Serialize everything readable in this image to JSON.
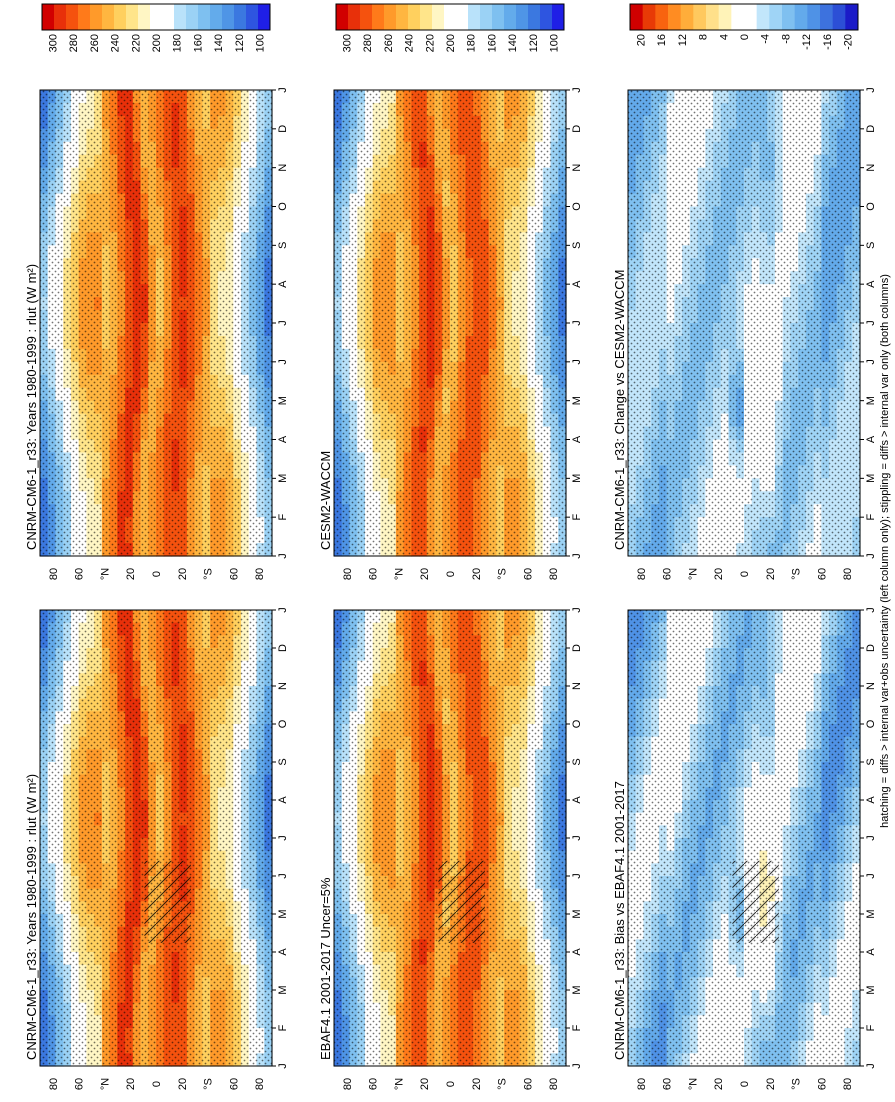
{
  "footer": "hatching = diffs > internal var+obs uncertainty (left column only); stippling = diffs > internal var only (both columns)",
  "colors": {
    "abs_scale": [
      "#1f1fe6",
      "#2e55e0",
      "#3b78e0",
      "#4f95e6",
      "#63abeb",
      "#7ec0f0",
      "#9bd2f5",
      "#b9e2fa",
      "#ffffff",
      "#ffffff",
      "#fff6c4",
      "#ffe58a",
      "#ffd05e",
      "#ffb640",
      "#ff9a2a",
      "#ff7a1a",
      "#f5520e",
      "#e8300a",
      "#d10000"
    ],
    "diff_scale": [
      "#1b1bc8",
      "#2c4fd6",
      "#3d72de",
      "#4f92e6",
      "#63aaeb",
      "#7fc0f0",
      "#9fd4f6",
      "#c2e6fb",
      "#ffffff",
      "#ffffff",
      "#fff3b8",
      "#ffe08a",
      "#ffc95e",
      "#ffad3a",
      "#ff8c22",
      "#f8630f",
      "#e83a06",
      "#d00000"
    ]
  },
  "chart_data": [
    {
      "type": "heatmap",
      "title": "CNRM-CM6-1_r33: Years 1980-1999 : rlut (W m²)",
      "months": [
        "J",
        "F",
        "M",
        "A",
        "M",
        "J",
        "J",
        "A",
        "S",
        "O",
        "N",
        "D",
        "J"
      ],
      "lat_labels": [
        "80",
        "60",
        "°N",
        "20",
        "0",
        "20",
        "°S",
        "60",
        "80"
      ],
      "y_range": [
        -90,
        90
      ],
      "legend_ticks": [
        "300",
        "280",
        "260",
        "240",
        "220",
        "200",
        "180",
        "160",
        "140",
        "120",
        "100"
      ],
      "legend_range": [
        90,
        310
      ],
      "scale": "abs",
      "tropics_peak": 282,
      "hatching": true
    },
    {
      "type": "heatmap",
      "title": "CNRM-CM6-1_r33: Years 1980-1999 : rlut (W m²)",
      "months": [
        "J",
        "F",
        "M",
        "A",
        "M",
        "J",
        "J",
        "A",
        "S",
        "O",
        "N",
        "D",
        "J"
      ],
      "lat_labels": [
        "80",
        "60",
        "°N",
        "20",
        "0",
        "20",
        "°S",
        "60",
        "80"
      ],
      "y_range": [
        -90,
        90
      ],
      "legend_ticks": [
        "300",
        "280",
        "260",
        "240",
        "220",
        "200",
        "180",
        "160",
        "140",
        "120",
        "100"
      ],
      "legend_range": [
        90,
        310
      ],
      "scale": "abs",
      "tropics_peak": 282,
      "hatching": false
    },
    {
      "type": "heatmap",
      "title": "EBAF4.1 2001-2017 Uncer=5%",
      "months": [
        "J",
        "F",
        "M",
        "A",
        "M",
        "J",
        "J",
        "A",
        "S",
        "O",
        "N",
        "D",
        "J"
      ],
      "lat_labels": [
        "80",
        "60",
        "°N",
        "20",
        "0",
        "20",
        "°S",
        "60",
        "80"
      ],
      "y_range": [
        -90,
        90
      ],
      "legend_ticks": [
        "300",
        "280",
        "260",
        "240",
        "220",
        "200",
        "180",
        "160",
        "140",
        "120",
        "100"
      ],
      "legend_range": [
        90,
        310
      ],
      "scale": "abs",
      "tropics_peak": 278,
      "hatching": true
    },
    {
      "type": "heatmap",
      "title": "CESM2-WACCM",
      "months": [
        "J",
        "F",
        "M",
        "A",
        "M",
        "J",
        "J",
        "A",
        "S",
        "O",
        "N",
        "D",
        "J"
      ],
      "lat_labels": [
        "80",
        "60",
        "°N",
        "20",
        "0",
        "20",
        "°S",
        "60",
        "80"
      ],
      "y_range": [
        -90,
        90
      ],
      "legend_ticks": [
        "300",
        "280",
        "260",
        "240",
        "220",
        "200",
        "180",
        "160",
        "140",
        "120",
        "100"
      ],
      "legend_range": [
        90,
        310
      ],
      "scale": "abs",
      "tropics_peak": 278,
      "hatching": false
    },
    {
      "type": "heatmap",
      "title": "CNRM-CM6-1_r33: Bias vs EBAF4.1 2001-2017",
      "months": [
        "J",
        "F",
        "M",
        "A",
        "M",
        "J",
        "J",
        "A",
        "S",
        "O",
        "N",
        "D",
        "J"
      ],
      "lat_labels": [
        "80",
        "60",
        "°N",
        "20",
        "0",
        "20",
        "°S",
        "60",
        "80"
      ],
      "y_range": [
        -90,
        90
      ],
      "legend_ticks": [
        "20",
        "16",
        "12",
        "8",
        "4",
        "0",
        "-4",
        "-8",
        "-12",
        "-16",
        "-20"
      ],
      "legend_range": [
        -22,
        22
      ],
      "scale": "diff",
      "hatching": true
    },
    {
      "type": "heatmap",
      "title": "CNRM-CM6-1_r33: Change vs CESM2-WACCM",
      "months": [
        "J",
        "F",
        "M",
        "A",
        "M",
        "J",
        "J",
        "A",
        "S",
        "O",
        "N",
        "D",
        "J"
      ],
      "lat_labels": [
        "80",
        "60",
        "°N",
        "20",
        "0",
        "20",
        "°S",
        "60",
        "80"
      ],
      "y_range": [
        -90,
        90
      ],
      "legend_ticks": [
        "20",
        "16",
        "12",
        "8",
        "4",
        "0",
        "-4",
        "-8",
        "-12",
        "-16",
        "-20"
      ],
      "legend_range": [
        -22,
        22
      ],
      "scale": "diff",
      "hatching": false
    }
  ]
}
